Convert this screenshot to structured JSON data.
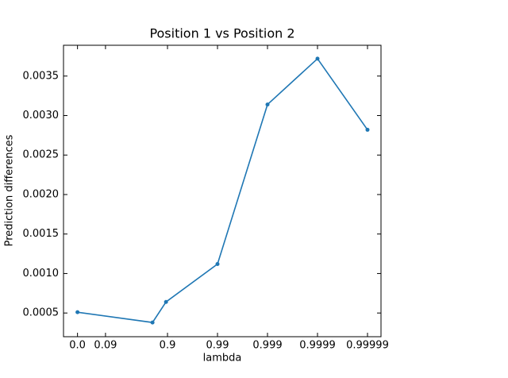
{
  "chart_data": {
    "type": "line",
    "title": "Position 1 vs Position 2",
    "x_label": "lambda",
    "y_label": "Prediction differences",
    "x": [
      -0.8,
      0.7,
      0.97,
      2,
      3,
      4,
      5
    ],
    "values": [
      0.00051,
      0.00038,
      0.00064,
      0.00112,
      0.00314,
      0.00372,
      0.00282
    ],
    "color": "#1f77b4",
    "xlim": [
      -1.08,
      5.27
    ],
    "xticks": [
      {
        "value": -0.8,
        "label": "0.0"
      },
      {
        "value": -0.24,
        "label": "0.09"
      },
      {
        "value": 1,
        "label": "0.9"
      },
      {
        "value": 2,
        "label": "0.99"
      },
      {
        "value": 3,
        "label": "0.999"
      },
      {
        "value": 4,
        "label": "0.9999"
      },
      {
        "value": 5,
        "label": "0.99999"
      }
    ],
    "ylim": [
      0.0002,
      0.00389
    ],
    "yticks": [
      0.0005,
      {
        "value": 0.001,
        "label": "0.0010"
      },
      0.0015,
      {
        "value": 0.002,
        "label": "0.0020"
      },
      0.0025,
      {
        "value": 0.003,
        "label": "0.0030"
      },
      0.0035
    ]
  }
}
